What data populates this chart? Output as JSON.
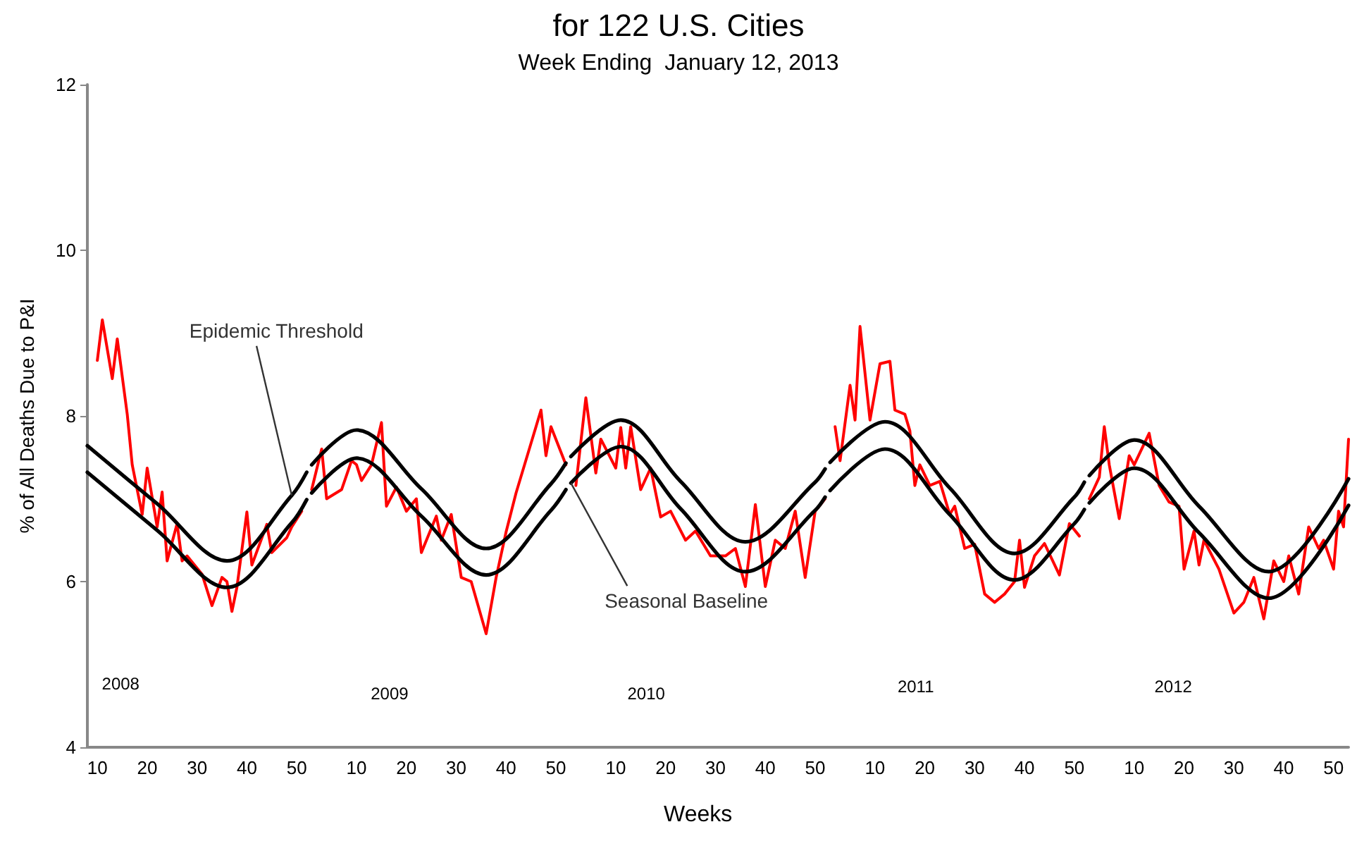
{
  "chart_data": [
    {
      "type": "line",
      "ylabel": "% of All Deaths Due to P&I",
      "xlim": [
        8,
        52.5
      ],
      "ylim": [
        4,
        12
      ],
      "xticks": [
        10,
        20,
        30,
        40,
        50
      ],
      "yticks": [
        4,
        6,
        8,
        10,
        12
      ],
      "marker": "none",
      "line_style": "solid",
      "series": [
        {
          "color": "#ff0000",
          "x": [
            10,
            11,
            13,
            14,
            16,
            17,
            19,
            20,
            22,
            23,
            24,
            26,
            27,
            28,
            31,
            33,
            35,
            36,
            37,
            38,
            40,
            41,
            44,
            45,
            48,
            49,
            51
          ],
          "values": [
            8.67,
            9.16,
            8.45,
            8.93,
            8.02,
            7.41,
            6.81,
            7.37,
            6.66,
            7.08,
            6.25,
            6.7,
            6.25,
            6.31,
            6.09,
            5.71,
            6.05,
            6.0,
            5.64,
            5.93,
            6.84,
            6.2,
            6.69,
            6.35,
            6.53,
            6.66,
            6.85
          ]
        },
        {
          "color": "#000000",
          "x": [
            8,
            22,
            36,
            49,
            52
          ],
          "values": [
            7.64,
            6.94,
            6.25,
            7.04,
            7.32
          ]
        },
        {
          "color": "#000000",
          "x": [
            8,
            22,
            36,
            49,
            52
          ],
          "values": [
            7.32,
            6.62,
            5.93,
            6.71,
            6.99
          ]
        }
      ],
      "annotations": [
        "2008",
        {
          "text": "Epidemic Threshold",
          "x": 49,
          "y": 7.04
        }
      ]
    },
    {
      "type": "line",
      "xlim": [
        0.5,
        52.5
      ],
      "ylim": [
        4,
        12
      ],
      "xticks": [
        10,
        20,
        30,
        40,
        50
      ],
      "yticks": [
        4,
        6,
        8,
        10,
        12
      ],
      "tick_labels": "x",
      "marker": "none",
      "line_style": "solid",
      "series": [
        {
          "color": "#ff0000",
          "x": [
            1,
            3,
            4,
            7,
            9,
            10,
            11,
            13,
            15,
            16,
            18,
            20,
            22,
            23,
            26,
            27,
            29,
            31,
            33,
            36,
            38,
            40,
            42,
            45,
            47,
            48,
            49,
            52
          ],
          "values": [
            7.11,
            7.6,
            7.0,
            7.11,
            7.46,
            7.41,
            7.22,
            7.41,
            7.92,
            6.91,
            7.14,
            6.85,
            7.0,
            6.35,
            6.79,
            6.5,
            6.81,
            6.05,
            6.0,
            5.37,
            6.05,
            6.6,
            7.07,
            7.67,
            8.07,
            7.52,
            7.87,
            7.41
          ]
        },
        {
          "color": "#000000",
          "x": [
            1,
            10,
            23,
            36,
            49,
            52
          ],
          "values": [
            7.41,
            7.83,
            7.12,
            6.4,
            7.18,
            7.43
          ]
        },
        {
          "color": "#000000",
          "x": [
            1,
            10,
            23,
            36,
            49,
            52
          ],
          "values": [
            7.07,
            7.49,
            6.79,
            6.08,
            6.86,
            7.11
          ]
        }
      ],
      "annotations": [
        "2009"
      ]
    },
    {
      "type": "line",
      "title": "for 122 U.S. Cities",
      "subtitle": "Week Ending  January 12, 2013",
      "xlabel": "Weeks",
      "xlim": [
        0.5,
        52.5
      ],
      "ylim": [
        4,
        12
      ],
      "xticks": [
        10,
        20,
        30,
        40,
        50
      ],
      "yticks": [
        4,
        6,
        8,
        10,
        12
      ],
      "tick_labels": "x",
      "marker": "none",
      "line_style": "solid",
      "series": [
        {
          "color": "#ff0000",
          "x": [
            2,
            4,
            6,
            7,
            10,
            11,
            12,
            13,
            15,
            17,
            19,
            21,
            24,
            26,
            29,
            32,
            34,
            36,
            38,
            40,
            42,
            44,
            46,
            48,
            50,
            52
          ],
          "values": [
            7.16,
            8.22,
            7.31,
            7.72,
            7.37,
            7.86,
            7.37,
            7.87,
            7.11,
            7.37,
            6.78,
            6.85,
            6.5,
            6.61,
            6.31,
            6.31,
            6.4,
            5.94,
            6.93,
            5.94,
            6.5,
            6.4,
            6.85,
            6.05,
            6.85,
            7.0
          ]
        },
        {
          "color": "#000000",
          "x": [
            1,
            11,
            23,
            36,
            50,
            52
          ],
          "values": [
            7.51,
            7.95,
            7.21,
            6.48,
            7.2,
            7.36
          ]
        },
        {
          "color": "#000000",
          "x": [
            1,
            11,
            23,
            36,
            50,
            52
          ],
          "values": [
            7.19,
            7.63,
            6.88,
            6.12,
            6.86,
            7.02
          ]
        }
      ],
      "annotations": [
        "2010",
        {
          "text": "Seasonal Baseline",
          "x": 1,
          "y": 7.19
        }
      ]
    },
    {
      "type": "line",
      "xlim": [
        0.5,
        52.5
      ],
      "ylim": [
        4,
        12
      ],
      "xticks": [
        10,
        20,
        30,
        40,
        50
      ],
      "yticks": [
        4,
        6,
        8,
        10,
        12
      ],
      "tick_labels": "x",
      "marker": "none",
      "line_style": "solid",
      "series": [
        {
          "color": "#ff0000",
          "x": [
            2,
            3,
            5,
            6,
            7,
            9,
            11,
            13,
            14,
            16,
            17,
            18,
            19,
            21,
            23,
            25,
            26,
            28,
            30,
            32,
            34,
            36,
            38,
            39,
            40,
            42,
            44,
            47,
            49,
            51
          ],
          "values": [
            7.87,
            7.46,
            8.37,
            7.95,
            9.08,
            7.95,
            8.63,
            8.66,
            8.07,
            8.02,
            7.82,
            7.16,
            7.41,
            7.16,
            7.21,
            6.81,
            6.91,
            6.4,
            6.45,
            5.85,
            5.75,
            5.85,
            6.0,
            6.5,
            5.93,
            6.31,
            6.46,
            6.08,
            6.7,
            6.55
          ]
        },
        {
          "color": "#000000",
          "x": [
            1,
            12,
            25,
            38,
            50,
            52
          ],
          "values": [
            7.44,
            7.93,
            7.13,
            6.34,
            7.02,
            7.2
          ]
        },
        {
          "color": "#000000",
          "x": [
            1,
            12,
            25,
            38,
            50,
            52
          ],
          "values": [
            7.1,
            7.6,
            6.81,
            6.02,
            6.7,
            6.87
          ]
        }
      ],
      "annotations": [
        "2011"
      ]
    },
    {
      "type": "line",
      "xlim": [
        0.5,
        53
      ],
      "ylim": [
        4,
        12
      ],
      "xticks": [
        10,
        20,
        30,
        40,
        50
      ],
      "yticks": [
        4,
        6,
        8,
        10,
        12
      ],
      "tick_labels": "x",
      "marker": "none",
      "line_style": "solid",
      "series": [
        {
          "color": "#ff0000",
          "x": [
            1,
            3,
            4,
            5,
            7,
            9,
            10,
            13,
            15,
            17,
            19,
            20,
            22,
            23,
            24,
            27,
            30,
            32,
            34,
            36,
            38,
            40,
            41,
            43,
            45,
            47,
            48,
            50,
            51,
            52,
            53
          ],
          "values": [
            7.0,
            7.26,
            7.87,
            7.41,
            6.76,
            7.52,
            7.41,
            7.79,
            7.16,
            6.96,
            6.91,
            6.15,
            6.61,
            6.2,
            6.5,
            6.15,
            5.62,
            5.75,
            6.05,
            5.55,
            6.25,
            6.0,
            6.31,
            5.85,
            6.66,
            6.4,
            6.5,
            6.15,
            6.85,
            6.66,
            7.72
          ]
        },
        {
          "color": "#000000",
          "x": [
            1,
            10,
            23,
            37,
            53
          ],
          "values": [
            7.28,
            7.71,
            6.91,
            6.12,
            7.24
          ]
        },
        {
          "color": "#000000",
          "x": [
            1,
            10,
            23,
            37,
            53
          ],
          "values": [
            6.95,
            7.37,
            6.59,
            5.8,
            6.92
          ]
        }
      ],
      "annotations": [
        "2012"
      ]
    }
  ]
}
